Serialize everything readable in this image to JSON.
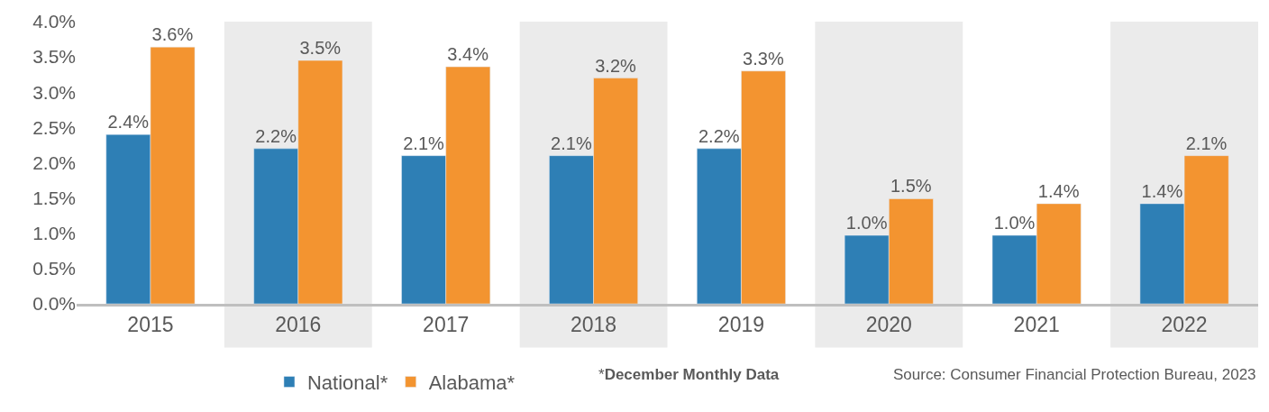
{
  "chart_data": {
    "type": "bar",
    "categories": [
      "2015",
      "2016",
      "2017",
      "2018",
      "2019",
      "2020",
      "2021",
      "2022"
    ],
    "series": [
      {
        "name": "National*",
        "color": "#2e7fb5",
        "values": [
          2.4,
          2.2,
          2.1,
          2.1,
          2.2,
          0.97,
          0.97,
          1.42
        ],
        "value_labels": [
          "2.4%",
          "2.2%",
          "2.1%",
          "2.1%",
          "2.2%",
          "1.0%",
          "1.0%",
          "1.4%"
        ]
      },
      {
        "name": "Alabama*",
        "color": "#f39430",
        "values": [
          3.64,
          3.45,
          3.36,
          3.2,
          3.3,
          1.49,
          1.42,
          2.1
        ],
        "value_labels": [
          "3.6%",
          "3.5%",
          "3.4%",
          "3.2%",
          "3.3%",
          "1.5%",
          "1.4%",
          "2.1%"
        ]
      }
    ],
    "ylim": [
      0,
      4.0
    ],
    "yticks": [
      {
        "value": 0,
        "label": "0.0%"
      },
      {
        "value": 0.5,
        "label": "0.5%"
      },
      {
        "value": 1.0,
        "label": "1.0%"
      },
      {
        "value": 1.5,
        "label": "1.5%"
      },
      {
        "value": 2.0,
        "label": "2.0%"
      },
      {
        "value": 2.5,
        "label": "2.5%"
      },
      {
        "value": 3.0,
        "label": "3.0%"
      },
      {
        "value": 3.5,
        "label": "3.5%"
      },
      {
        "value": 4.0,
        "label": "4.0%"
      }
    ],
    "bands": [
      {
        "axis": "x",
        "from": "2016",
        "to": "2016",
        "color": "#ebebeb"
      },
      {
        "axis": "x",
        "from": "2018",
        "to": "2018",
        "color": "#ebebeb"
      },
      {
        "axis": "x",
        "from": "2020",
        "to": "2020",
        "color": "#ebebeb"
      },
      {
        "axis": "x",
        "from": "2022",
        "to": "2022",
        "color": "#ebebeb"
      }
    ],
    "grid": false,
    "legend": "bottom",
    "annotations": [
      "*December Monthly Data",
      "Source: Consumer Financial Protection Bureau, 2023"
    ]
  }
}
